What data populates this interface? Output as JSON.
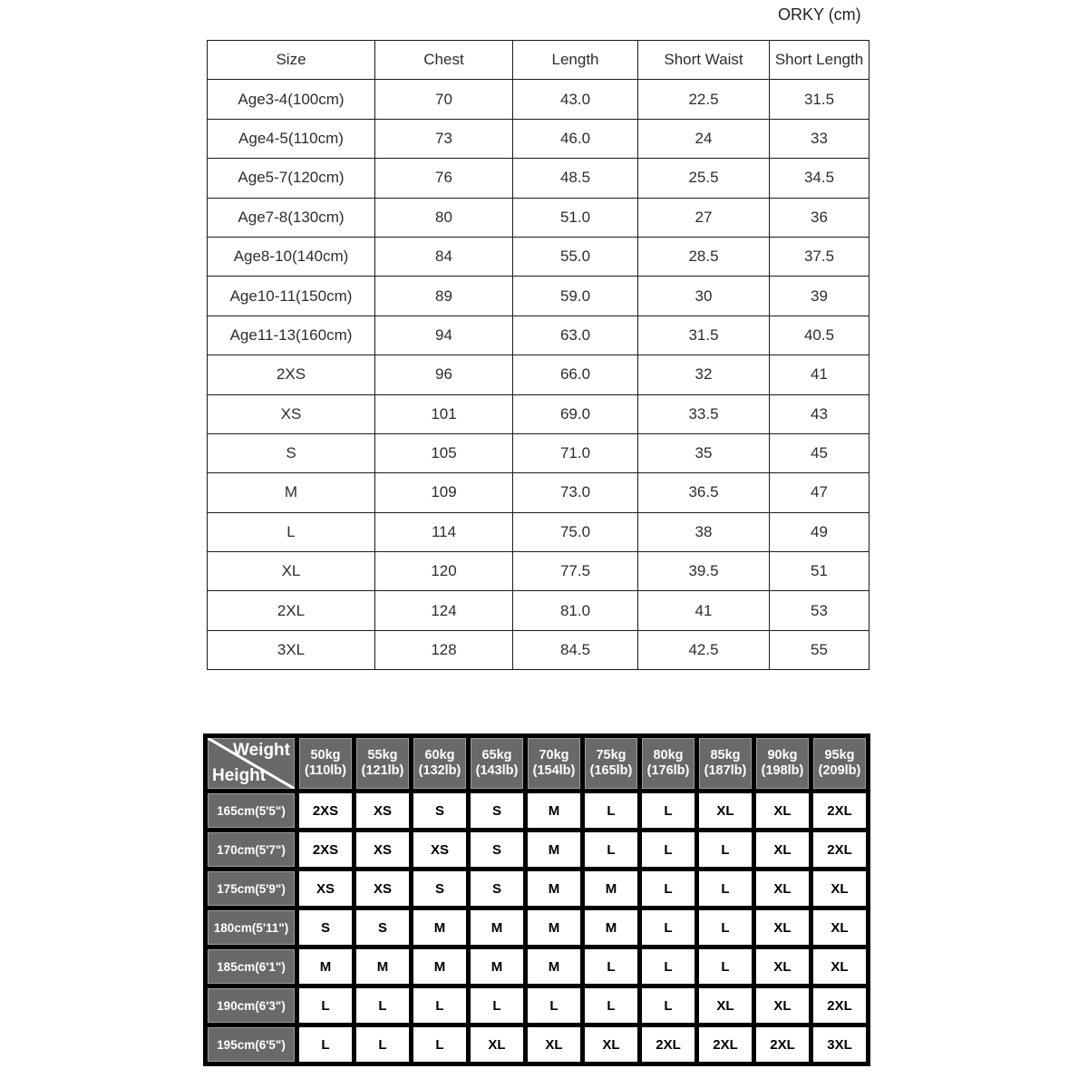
{
  "title": "ORKY (cm)",
  "colors": {
    "matrix_header_gray": "#696969",
    "matrix_border_black": "#000000",
    "table_text": "#2d2d2d",
    "matrix_header_text": "#ffffff"
  },
  "size_table": {
    "headers": [
      "Size",
      "Chest",
      "Length",
      "Short Waist",
      "Short Length"
    ],
    "rows": [
      [
        "Age3-4(100cm)",
        "70",
        "43.0",
        "22.5",
        "31.5"
      ],
      [
        "Age4-5(110cm)",
        "73",
        "46.0",
        "24",
        "33"
      ],
      [
        "Age5-7(120cm)",
        "76",
        "48.5",
        "25.5",
        "34.5"
      ],
      [
        "Age7-8(130cm)",
        "80",
        "51.0",
        "27",
        "36"
      ],
      [
        "Age8-10(140cm)",
        "84",
        "55.0",
        "28.5",
        "37.5"
      ],
      [
        "Age10-11(150cm)",
        "89",
        "59.0",
        "30",
        "39"
      ],
      [
        "Age11-13(160cm)",
        "94",
        "63.0",
        "31.5",
        "40.5"
      ],
      [
        "2XS",
        "96",
        "66.0",
        "32",
        "41"
      ],
      [
        "XS",
        "101",
        "69.0",
        "33.5",
        "43"
      ],
      [
        "S",
        "105",
        "71.0",
        "35",
        "45"
      ],
      [
        "M",
        "109",
        "73.0",
        "36.5",
        "47"
      ],
      [
        "L",
        "114",
        "75.0",
        "38",
        "49"
      ],
      [
        "XL",
        "120",
        "77.5",
        "39.5",
        "51"
      ],
      [
        "2XL",
        "124",
        "81.0",
        "41",
        "53"
      ],
      [
        "3XL",
        "128",
        "84.5",
        "42.5",
        "55"
      ]
    ]
  },
  "fit_matrix": {
    "corner": {
      "weight_label": "Weight",
      "height_label": "Height"
    },
    "weight_columns": [
      {
        "kg": "50kg",
        "lb": "(110lb)"
      },
      {
        "kg": "55kg",
        "lb": "(121lb)"
      },
      {
        "kg": "60kg",
        "lb": "(132lb)"
      },
      {
        "kg": "65kg",
        "lb": "(143lb)"
      },
      {
        "kg": "70kg",
        "lb": "(154lb)"
      },
      {
        "kg": "75kg",
        "lb": "(165lb)"
      },
      {
        "kg": "80kg",
        "lb": "(176lb)"
      },
      {
        "kg": "85kg",
        "lb": "(187lb)"
      },
      {
        "kg": "90kg",
        "lb": "(198lb)"
      },
      {
        "kg": "95kg",
        "lb": "(209lb)"
      }
    ],
    "rows": [
      {
        "height": "165cm(5'5\")",
        "sizes": [
          "2XS",
          "XS",
          "S",
          "S",
          "M",
          "L",
          "L",
          "XL",
          "XL",
          "2XL"
        ]
      },
      {
        "height": "170cm(5'7\")",
        "sizes": [
          "2XS",
          "XS",
          "XS",
          "S",
          "M",
          "L",
          "L",
          "L",
          "XL",
          "2XL"
        ]
      },
      {
        "height": "175cm(5'9\")",
        "sizes": [
          "XS",
          "XS",
          "S",
          "S",
          "M",
          "M",
          "L",
          "L",
          "XL",
          "XL"
        ]
      },
      {
        "height": "180cm(5'11\")",
        "sizes": [
          "S",
          "S",
          "M",
          "M",
          "M",
          "M",
          "L",
          "L",
          "XL",
          "XL"
        ]
      },
      {
        "height": "185cm(6'1\")",
        "sizes": [
          "M",
          "M",
          "M",
          "M",
          "M",
          "L",
          "L",
          "L",
          "XL",
          "XL"
        ]
      },
      {
        "height": "190cm(6'3\")",
        "sizes": [
          "L",
          "L",
          "L",
          "L",
          "L",
          "L",
          "L",
          "XL",
          "XL",
          "2XL"
        ]
      },
      {
        "height": "195cm(6'5\")",
        "sizes": [
          "L",
          "L",
          "L",
          "XL",
          "XL",
          "XL",
          "2XL",
          "2XL",
          "2XL",
          "3XL"
        ]
      }
    ]
  }
}
